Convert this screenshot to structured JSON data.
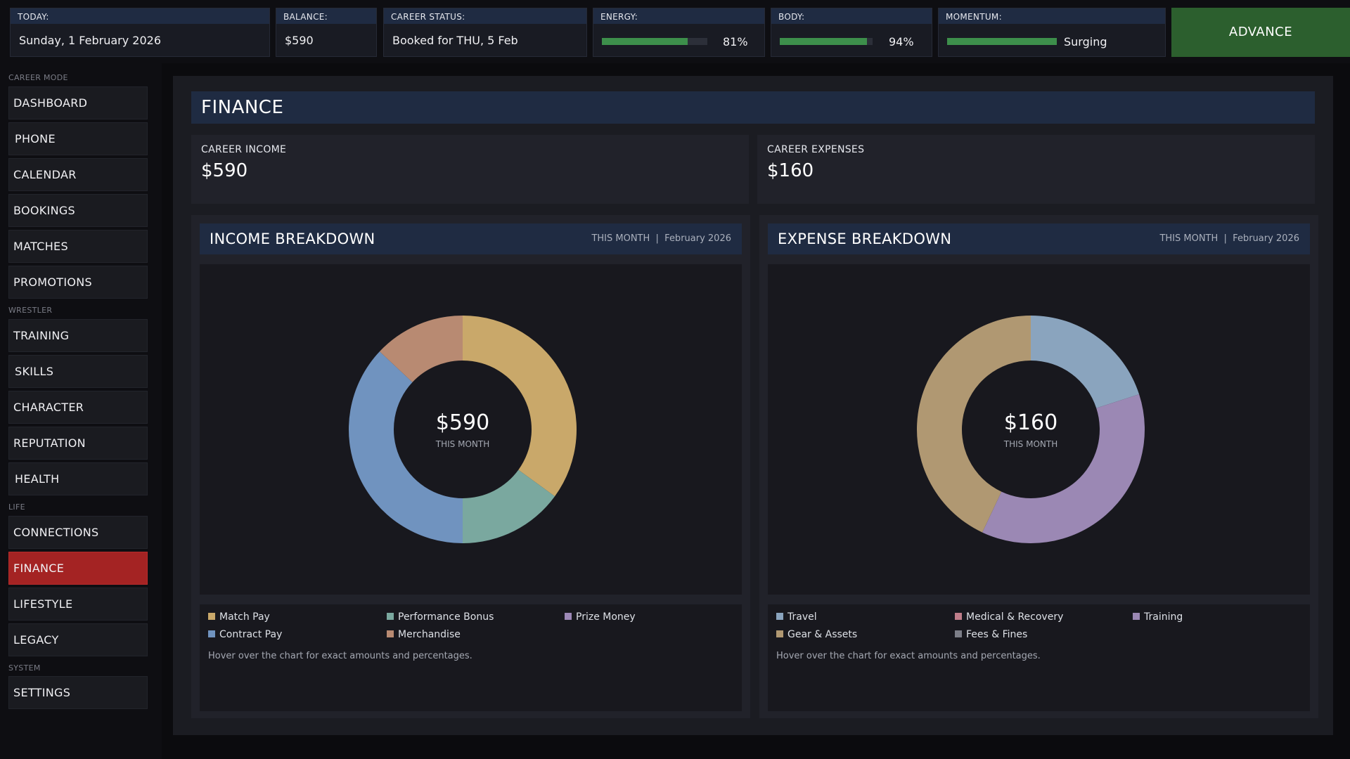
{
  "topbar": {
    "today": {
      "label": "TODAY:",
      "value": "Sunday, 1 February 2026"
    },
    "balance": {
      "label": "BALANCE:",
      "value": "$590"
    },
    "career_status": {
      "label": "CAREER STATUS:",
      "value": "Booked for THU, 5 Feb"
    },
    "energy": {
      "label": "ENERGY:",
      "value": "81%",
      "level": 0.81
    },
    "body": {
      "label": "BODY:",
      "value": "94%",
      "level": 0.94
    },
    "momentum": {
      "label": "MOMENTUM:",
      "value": "Surging",
      "level": 1.0
    },
    "advance_label": "ADVANCE"
  },
  "sidebar": {
    "sections": {
      "career_mode": "CAREER MODE",
      "wrestler": "WRESTLER",
      "life": "LIFE",
      "system": "SYSTEM"
    },
    "items": [
      {
        "label": "DASHBOARD"
      },
      {
        "label": "PHONE"
      },
      {
        "label": "CALENDAR"
      },
      {
        "label": "BOOKINGS"
      },
      {
        "label": "MATCHES"
      },
      {
        "label": "PROMOTIONS"
      },
      {
        "label": "TRAINING"
      },
      {
        "label": "SKILLS"
      },
      {
        "label": "CHARACTER"
      },
      {
        "label": "REPUTATION"
      },
      {
        "label": "HEALTH"
      },
      {
        "label": "CONNECTIONS"
      },
      {
        "label": "FINANCE",
        "active": true
      },
      {
        "label": "LIFESTYLE"
      },
      {
        "label": "LEGACY"
      },
      {
        "label": "SETTINGS"
      }
    ]
  },
  "main": {
    "title": "FINANCE",
    "career_income": {
      "label": "CAREER INCOME",
      "value": "$590"
    },
    "career_expenses": {
      "label": "CAREER EXPENSES",
      "value": "$160"
    },
    "income_panel": {
      "title": "INCOME BREAKDOWN",
      "period": "THIS MONTH  |  February 2026",
      "center_value": "$590",
      "center_label": "THIS MONTH",
      "hint": "Hover over the chart for exact amounts and percentages.",
      "legend": [
        {
          "name": "Match Pay",
          "color": "#c9a86a"
        },
        {
          "name": "Performance Bonus",
          "color": "#7aa89f"
        },
        {
          "name": "Prize Money",
          "color": "#9c88b6"
        },
        {
          "name": "Contract Pay",
          "color": "#7093bf"
        },
        {
          "name": "Merchandise",
          "color": "#b88a72"
        }
      ]
    },
    "expense_panel": {
      "title": "EXPENSE BREAKDOWN",
      "period": "THIS MONTH  |  February 2026",
      "center_value": "$160",
      "center_label": "THIS MONTH",
      "hint": "Hover over the chart for exact amounts and percentages.",
      "legend": [
        {
          "name": "Travel",
          "color": "#8aa4be"
        },
        {
          "name": "Medical & Recovery",
          "color": "#bf7d8a"
        },
        {
          "name": "Training",
          "color": "#9b88b4"
        },
        {
          "name": "Gear & Assets",
          "color": "#b09872"
        },
        {
          "name": "Fees & Fines",
          "color": "#7c7e88"
        }
      ]
    }
  },
  "chart_data": [
    {
      "type": "pie",
      "categories": [
        "Match Pay",
        "Performance Bonus",
        "Contract Pay",
        "Merchandise"
      ],
      "values": [
        35,
        15,
        37,
        13
      ],
      "colors": [
        "#c9a86a",
        "#7aa89f",
        "#7093bf",
        "#b88a72"
      ]
    },
    {
      "type": "pie",
      "categories": [
        "Travel",
        "Training",
        "Gear & Assets"
      ],
      "values": [
        20,
        37,
        43
      ],
      "colors": [
        "#8aa4be",
        "#9b88b4",
        "#b09872"
      ]
    }
  ]
}
